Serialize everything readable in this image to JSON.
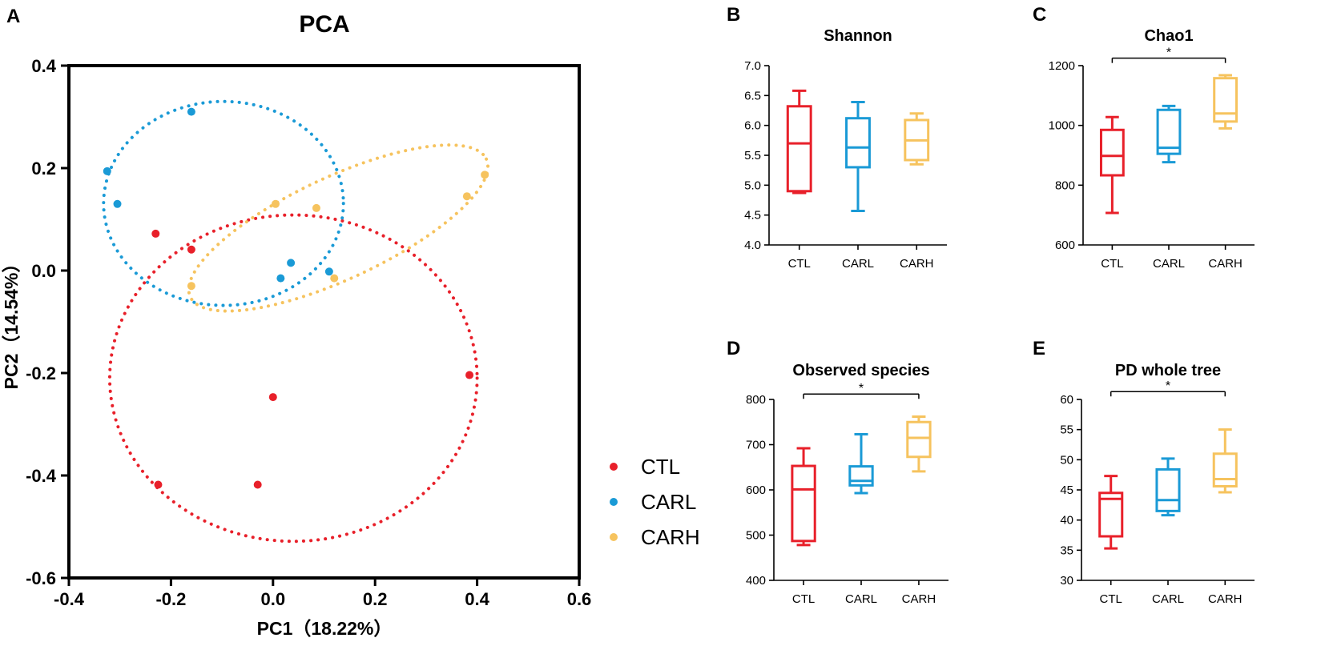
{
  "colors": {
    "CTL": "#e8202a",
    "CARL": "#1a9ad6",
    "CARH": "#f6c35e"
  },
  "legend": [
    {
      "group": "CTL",
      "label": "CTL"
    },
    {
      "group": "CARL",
      "label": "CARL"
    },
    {
      "group": "CARH",
      "label": "CARH"
    }
  ],
  "chart_data": [
    {
      "id": "A",
      "letter": "A",
      "type": "scatter",
      "title": "PCA",
      "xlabel": "PC1（18.22%）",
      "ylabel": "PC2（14.54%）",
      "xlim": [
        -0.4,
        0.6
      ],
      "ylim": [
        -0.6,
        0.4
      ],
      "xticks": [
        -0.4,
        -0.2,
        0.0,
        0.2,
        0.4,
        0.6
      ],
      "yticks": [
        -0.6,
        -0.4,
        -0.2,
        0.0,
        0.2,
        0.4
      ],
      "xtick_labels": [
        "-0.4",
        "-0.2",
        "0.0",
        "0.2",
        "0.4",
        "0.6"
      ],
      "ytick_labels": [
        "-0.6",
        "-0.4",
        "-0.2",
        "0.0",
        "0.2",
        "0.4"
      ],
      "series": [
        {
          "name": "CTL",
          "points": [
            [
              -0.23,
              0.072
            ],
            [
              -0.16,
              0.041
            ],
            [
              0.0,
              -0.247
            ],
            [
              -0.225,
              -0.418
            ],
            [
              -0.03,
              -0.418
            ],
            [
              0.385,
              -0.204
            ]
          ],
          "ellipse": {
            "cx": 0.04,
            "cy": -0.21,
            "rx": 0.36,
            "ry": 0.32,
            "angle_deg": 0
          }
        },
        {
          "name": "CARL",
          "points": [
            [
              -0.16,
              0.31
            ],
            [
              -0.325,
              0.194
            ],
            [
              -0.305,
              0.13
            ],
            [
              0.035,
              0.015
            ],
            [
              0.015,
              -0.015
            ],
            [
              0.11,
              -0.002
            ]
          ],
          "ellipse": {
            "cx": -0.097,
            "cy": 0.131,
            "rx": 0.235,
            "ry": 0.2,
            "angle_deg": 0
          }
        },
        {
          "name": "CARH",
          "points": [
            [
              -0.16,
              -0.03
            ],
            [
              0.005,
              0.13
            ],
            [
              0.085,
              0.122
            ],
            [
              0.12,
              -0.015
            ],
            [
              0.38,
              0.145
            ],
            [
              0.415,
              0.187
            ]
          ],
          "ellipse": {
            "cx": 0.128,
            "cy": 0.083,
            "rx": 0.32,
            "ry": 0.1,
            "angle_deg": 25
          }
        }
      ]
    },
    {
      "id": "B",
      "letter": "B",
      "type": "box",
      "title": "Shannon",
      "ylim": [
        4.0,
        7.0
      ],
      "yticks": [
        4.0,
        4.5,
        5.0,
        5.5,
        6.0,
        6.5,
        7.0
      ],
      "ytick_labels": [
        "4.0",
        "4.5",
        "5.0",
        "5.5",
        "6.0",
        "6.5",
        "7.0"
      ],
      "categories": [
        "CTL",
        "CARL",
        "CARH"
      ],
      "boxes": [
        {
          "group": "CTL",
          "min": 4.87,
          "q1": 4.9,
          "median": 5.7,
          "q3": 6.32,
          "max": 6.58
        },
        {
          "group": "CARL",
          "min": 4.57,
          "q1": 5.3,
          "median": 5.63,
          "q3": 6.12,
          "max": 6.39
        },
        {
          "group": "CARH",
          "min": 5.35,
          "q1": 5.42,
          "median": 5.75,
          "q3": 6.09,
          "max": 6.2
        }
      ],
      "significance": null
    },
    {
      "id": "C",
      "letter": "C",
      "type": "box",
      "title": "Chao1",
      "ylim": [
        600,
        1200
      ],
      "yticks": [
        600,
        800,
        1000,
        1200
      ],
      "ytick_labels": [
        "600",
        "800",
        "1000",
        "1200"
      ],
      "categories": [
        "CTL",
        "CARL",
        "CARH"
      ],
      "boxes": [
        {
          "group": "CTL",
          "min": 707,
          "q1": 833,
          "median": 898,
          "q3": 985,
          "max": 1028
        },
        {
          "group": "CARL",
          "min": 877,
          "q1": 905,
          "median": 925,
          "q3": 1052,
          "max": 1065
        },
        {
          "group": "CARH",
          "min": 990,
          "q1": 1013,
          "median": 1040,
          "q3": 1158,
          "max": 1168
        }
      ],
      "significance": {
        "from": "CTL",
        "to": "CARH",
        "label": "*",
        "level": 1225
      }
    },
    {
      "id": "D",
      "letter": "D",
      "type": "box",
      "title": "Observed species",
      "ylim": [
        400,
        800
      ],
      "yticks": [
        400,
        500,
        600,
        700,
        800
      ],
      "ytick_labels": [
        "400",
        "500",
        "600",
        "700",
        "800"
      ],
      "categories": [
        "CTL",
        "CARL",
        "CARH"
      ],
      "boxes": [
        {
          "group": "CTL",
          "min": 478,
          "q1": 487,
          "median": 601,
          "q3": 653,
          "max": 692
        },
        {
          "group": "CARL",
          "min": 593,
          "q1": 610,
          "median": 620,
          "q3": 652,
          "max": 723
        },
        {
          "group": "CARH",
          "min": 641,
          "q1": 673,
          "median": 715,
          "q3": 750,
          "max": 762
        }
      ],
      "significance": {
        "from": "CTL",
        "to": "CARH",
        "label": "*",
        "level": 812
      }
    },
    {
      "id": "E",
      "letter": "E",
      "type": "box",
      "title": "PD whole tree",
      "ylim": [
        30,
        60
      ],
      "yticks": [
        30,
        35,
        40,
        45,
        50,
        55,
        60
      ],
      "ytick_labels": [
        "30",
        "35",
        "40",
        "45",
        "50",
        "55",
        "60"
      ],
      "categories": [
        "CTL",
        "CARL",
        "CARH"
      ],
      "boxes": [
        {
          "group": "CTL",
          "min": 35.3,
          "q1": 37.3,
          "median": 43.5,
          "q3": 44.5,
          "max": 47.3
        },
        {
          "group": "CARL",
          "min": 40.8,
          "q1": 41.5,
          "median": 43.3,
          "q3": 48.4,
          "max": 50.2
        },
        {
          "group": "CARH",
          "min": 44.6,
          "q1": 45.6,
          "median": 46.8,
          "q3": 51.0,
          "max": 55.0
        }
      ],
      "significance": {
        "from": "CTL",
        "to": "CARH",
        "label": "*",
        "level": 61.3
      }
    }
  ]
}
